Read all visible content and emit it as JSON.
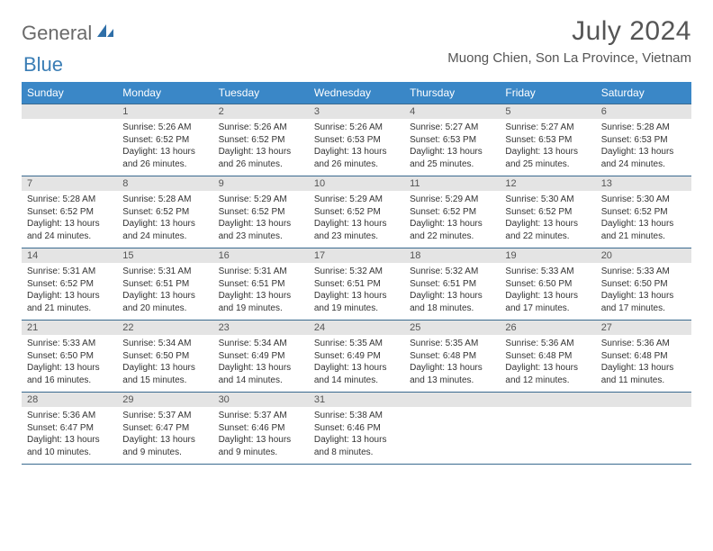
{
  "logo": {
    "part1": "General",
    "part2": "Blue"
  },
  "title": "July 2024",
  "location": "Muong Chien, Son La Province, Vietnam",
  "colors": {
    "header_bg": "#3a87c7",
    "header_text": "#ffffff",
    "band_bg": "#e4e4e4",
    "rule": "#3a6a8f",
    "logo_gray": "#6a6a6a",
    "logo_blue": "#3a7db5"
  },
  "day_names": [
    "Sunday",
    "Monday",
    "Tuesday",
    "Wednesday",
    "Thursday",
    "Friday",
    "Saturday"
  ],
  "weeks": [
    [
      {
        "n": "",
        "sunrise": "",
        "sunset": "",
        "daylight": ""
      },
      {
        "n": "1",
        "sunrise": "5:26 AM",
        "sunset": "6:52 PM",
        "daylight": "13 hours and 26 minutes."
      },
      {
        "n": "2",
        "sunrise": "5:26 AM",
        "sunset": "6:52 PM",
        "daylight": "13 hours and 26 minutes."
      },
      {
        "n": "3",
        "sunrise": "5:26 AM",
        "sunset": "6:53 PM",
        "daylight": "13 hours and 26 minutes."
      },
      {
        "n": "4",
        "sunrise": "5:27 AM",
        "sunset": "6:53 PM",
        "daylight": "13 hours and 25 minutes."
      },
      {
        "n": "5",
        "sunrise": "5:27 AM",
        "sunset": "6:53 PM",
        "daylight": "13 hours and 25 minutes."
      },
      {
        "n": "6",
        "sunrise": "5:28 AM",
        "sunset": "6:53 PM",
        "daylight": "13 hours and 24 minutes."
      }
    ],
    [
      {
        "n": "7",
        "sunrise": "5:28 AM",
        "sunset": "6:52 PM",
        "daylight": "13 hours and 24 minutes."
      },
      {
        "n": "8",
        "sunrise": "5:28 AM",
        "sunset": "6:52 PM",
        "daylight": "13 hours and 24 minutes."
      },
      {
        "n": "9",
        "sunrise": "5:29 AM",
        "sunset": "6:52 PM",
        "daylight": "13 hours and 23 minutes."
      },
      {
        "n": "10",
        "sunrise": "5:29 AM",
        "sunset": "6:52 PM",
        "daylight": "13 hours and 23 minutes."
      },
      {
        "n": "11",
        "sunrise": "5:29 AM",
        "sunset": "6:52 PM",
        "daylight": "13 hours and 22 minutes."
      },
      {
        "n": "12",
        "sunrise": "5:30 AM",
        "sunset": "6:52 PM",
        "daylight": "13 hours and 22 minutes."
      },
      {
        "n": "13",
        "sunrise": "5:30 AM",
        "sunset": "6:52 PM",
        "daylight": "13 hours and 21 minutes."
      }
    ],
    [
      {
        "n": "14",
        "sunrise": "5:31 AM",
        "sunset": "6:52 PM",
        "daylight": "13 hours and 21 minutes."
      },
      {
        "n": "15",
        "sunrise": "5:31 AM",
        "sunset": "6:51 PM",
        "daylight": "13 hours and 20 minutes."
      },
      {
        "n": "16",
        "sunrise": "5:31 AM",
        "sunset": "6:51 PM",
        "daylight": "13 hours and 19 minutes."
      },
      {
        "n": "17",
        "sunrise": "5:32 AM",
        "sunset": "6:51 PM",
        "daylight": "13 hours and 19 minutes."
      },
      {
        "n": "18",
        "sunrise": "5:32 AM",
        "sunset": "6:51 PM",
        "daylight": "13 hours and 18 minutes."
      },
      {
        "n": "19",
        "sunrise": "5:33 AM",
        "sunset": "6:50 PM",
        "daylight": "13 hours and 17 minutes."
      },
      {
        "n": "20",
        "sunrise": "5:33 AM",
        "sunset": "6:50 PM",
        "daylight": "13 hours and 17 minutes."
      }
    ],
    [
      {
        "n": "21",
        "sunrise": "5:33 AM",
        "sunset": "6:50 PM",
        "daylight": "13 hours and 16 minutes."
      },
      {
        "n": "22",
        "sunrise": "5:34 AM",
        "sunset": "6:50 PM",
        "daylight": "13 hours and 15 minutes."
      },
      {
        "n": "23",
        "sunrise": "5:34 AM",
        "sunset": "6:49 PM",
        "daylight": "13 hours and 14 minutes."
      },
      {
        "n": "24",
        "sunrise": "5:35 AM",
        "sunset": "6:49 PM",
        "daylight": "13 hours and 14 minutes."
      },
      {
        "n": "25",
        "sunrise": "5:35 AM",
        "sunset": "6:48 PM",
        "daylight": "13 hours and 13 minutes."
      },
      {
        "n": "26",
        "sunrise": "5:36 AM",
        "sunset": "6:48 PM",
        "daylight": "13 hours and 12 minutes."
      },
      {
        "n": "27",
        "sunrise": "5:36 AM",
        "sunset": "6:48 PM",
        "daylight": "13 hours and 11 minutes."
      }
    ],
    [
      {
        "n": "28",
        "sunrise": "5:36 AM",
        "sunset": "6:47 PM",
        "daylight": "13 hours and 10 minutes."
      },
      {
        "n": "29",
        "sunrise": "5:37 AM",
        "sunset": "6:47 PM",
        "daylight": "13 hours and 9 minutes."
      },
      {
        "n": "30",
        "sunrise": "5:37 AM",
        "sunset": "6:46 PM",
        "daylight": "13 hours and 9 minutes."
      },
      {
        "n": "31",
        "sunrise": "5:38 AM",
        "sunset": "6:46 PM",
        "daylight": "13 hours and 8 minutes."
      },
      {
        "n": "",
        "sunrise": "",
        "sunset": "",
        "daylight": ""
      },
      {
        "n": "",
        "sunrise": "",
        "sunset": "",
        "daylight": ""
      },
      {
        "n": "",
        "sunrise": "",
        "sunset": "",
        "daylight": ""
      }
    ]
  ],
  "labels": {
    "sunrise": "Sunrise:",
    "sunset": "Sunset:",
    "daylight": "Daylight:"
  }
}
